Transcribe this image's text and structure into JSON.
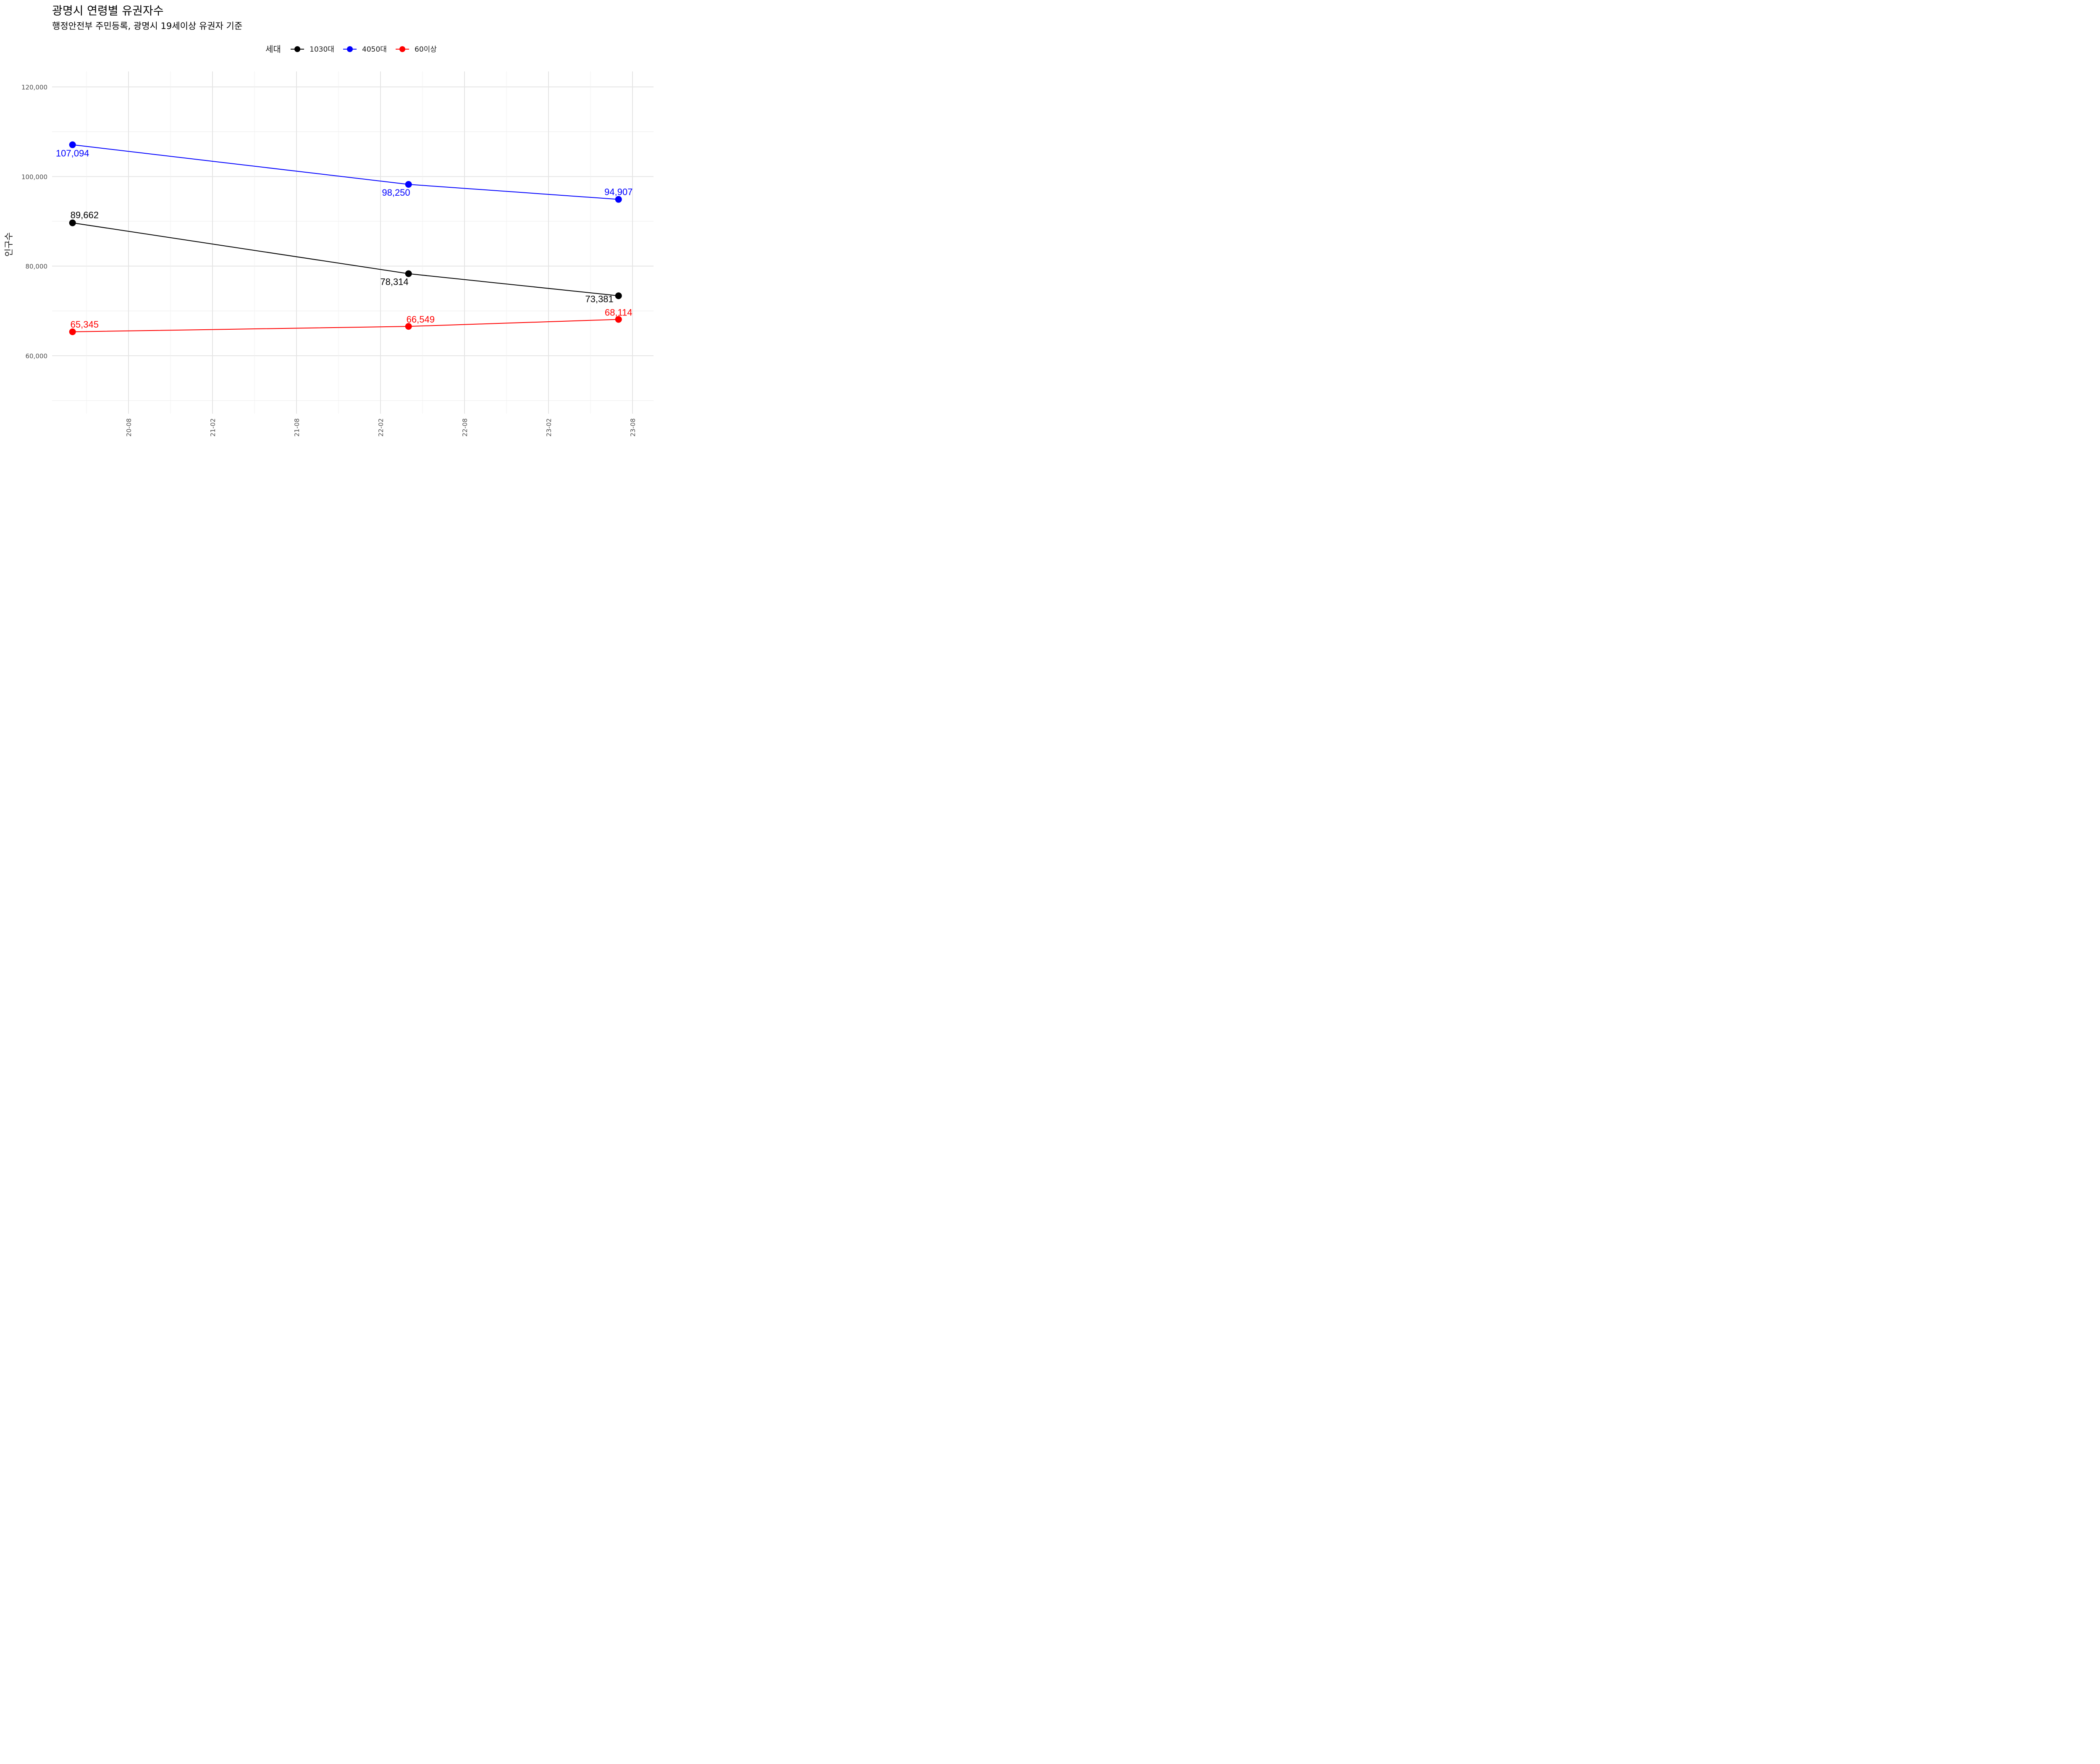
{
  "chart_data": {
    "type": "line",
    "title": "광명시 연령별 유권자수",
    "subtitle": "행정안전부 주민등록, 광명시 19세이상 유권자 기준",
    "xlabel": "",
    "ylabel": "인구수",
    "legend": {
      "title": "세대",
      "placement": "top"
    },
    "grid": true,
    "x": [
      "2020-04",
      "2022-04",
      "2023-07"
    ],
    "series": [
      {
        "name": "1030대",
        "color": "#000000",
        "values": [
          89662,
          78314,
          73381
        ],
        "labels": [
          "89,662",
          "78,314",
          "73,381"
        ]
      },
      {
        "name": "4050대",
        "color": "#0000FF",
        "values": [
          107094,
          98250,
          94907
        ],
        "labels": [
          "107,094",
          "98,250",
          "94,907"
        ]
      },
      {
        "name": "60이상",
        "color": "#FF0000",
        "values": [
          65345,
          66549,
          68114
        ],
        "labels": [
          "65,345",
          "66,549",
          "68,114"
        ]
      }
    ],
    "ylim": [
      50000,
      120000
    ],
    "yticks": [
      60000,
      80000,
      100000,
      120000
    ],
    "ytick_labels": [
      "60,000",
      "80,000",
      "100,000",
      "120,000"
    ],
    "xlim": [
      "2020-02",
      "2023-09"
    ],
    "xticks": [
      "2020-08",
      "2021-02",
      "2021-08",
      "2022-02",
      "2022-08",
      "2023-02",
      "2023-08"
    ],
    "xtick_labels": [
      "20-08",
      "21-02",
      "21-08",
      "22-02",
      "22-08",
      "23-02",
      "23-08"
    ]
  }
}
